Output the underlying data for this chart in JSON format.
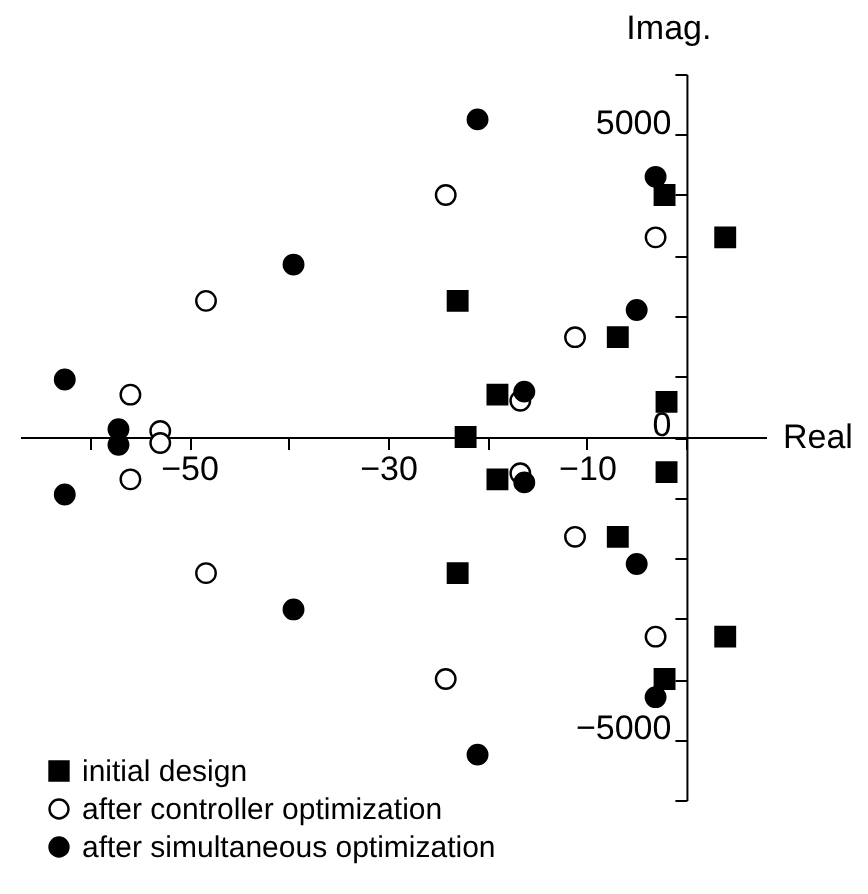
{
  "chart_data": {
    "type": "scatter",
    "xlabel": "Real",
    "ylabel": "Imag.",
    "xlim": [
      -67,
      8
    ],
    "ylim": [
      -6000,
      6000
    ],
    "xticks": [
      {
        "value": -60,
        "label": null
      },
      -50,
      {
        "value": -40,
        "label": null
      },
      -30,
      {
        "value": -20,
        "label": null
      },
      -10,
      {
        "value": 0,
        "label": null
      }
    ],
    "yticks": [
      {
        "value": -6000,
        "label": null
      },
      -5000,
      {
        "value": -4000,
        "label": null
      },
      {
        "value": -3000,
        "label": null
      },
      {
        "value": -2000,
        "label": null
      },
      {
        "value": -1000,
        "label": null
      },
      0,
      {
        "value": 1000,
        "label": null
      },
      {
        "value": 2000,
        "label": null
      },
      {
        "value": 3000,
        "label": null
      },
      {
        "value": 4000,
        "label": null
      },
      5000,
      {
        "value": 6000,
        "label": null
      }
    ],
    "legend": "bottom left",
    "series": [
      {
        "name": "initial design",
        "color": "#000000",
        "marker": "square",
        "x": [
          -2.2,
          -2.2,
          3.9,
          3.9,
          -23,
          -23,
          -6.9,
          -6.9,
          -19,
          -19,
          -2,
          -2,
          -22.2
        ],
        "values": [
          4000,
          -4000,
          3300,
          -3300,
          2250,
          -2250,
          1650,
          -1650,
          700,
          -700,
          580,
          -580,
          0
        ]
      },
      {
        "name": "after controller optimization",
        "color": "#ffffff",
        "marker": "circle",
        "x": [
          -24.2,
          -24.2,
          -3.1,
          -3.1,
          -48.3,
          -48.3,
          -11.2,
          -11.2,
          -16.7,
          -16.7,
          -55.9,
          -55.9,
          -52.9,
          -52.9
        ],
        "values": [
          4000,
          -4000,
          3300,
          -3300,
          2250,
          -2250,
          1650,
          -1650,
          600,
          -600,
          700,
          -700,
          100,
          -100
        ]
      },
      {
        "name": "after simultaneous optimization",
        "color": "#000000",
        "marker": "circle",
        "x": [
          -21,
          -21,
          -3.1,
          -3.1,
          -39.5,
          -39.5,
          -5,
          -5,
          -16.3,
          -16.3,
          -62.5,
          -62.5,
          -57.1,
          -57.1
        ],
        "values": [
          5250,
          -5250,
          4300,
          -4300,
          2850,
          -2850,
          2100,
          -2100,
          750,
          -750,
          950,
          -950,
          130,
          -130
        ]
      }
    ]
  }
}
